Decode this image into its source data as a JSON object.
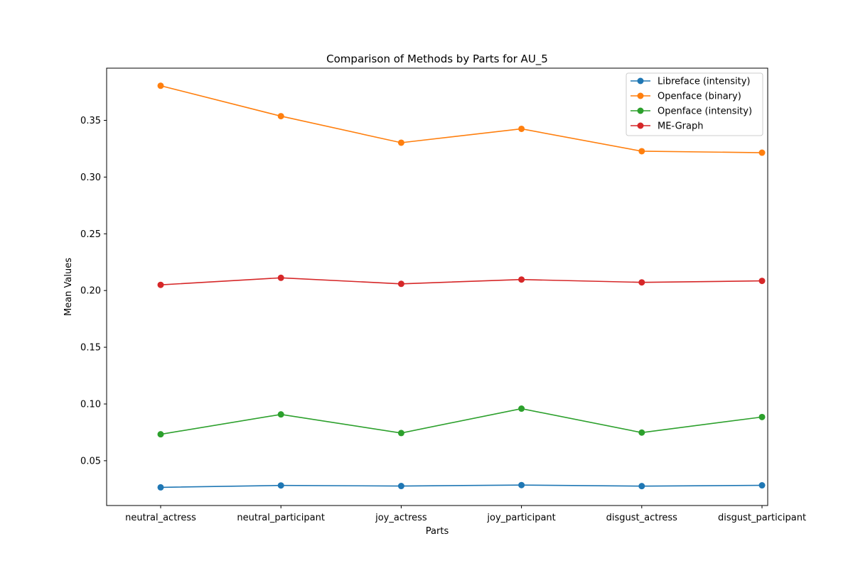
{
  "chart_data": {
    "type": "line",
    "title": "Comparison of Methods by Parts for AU_5",
    "xlabel": "Parts",
    "ylabel": "Mean Values",
    "categories": [
      "neutral_actress",
      "neutral_participant",
      "joy_actress",
      "joy_participant",
      "disgust_actress",
      "disgust_participant"
    ],
    "ylim": [
      0.0105,
      0.396
    ],
    "yticks": [
      0.05,
      0.1,
      0.15,
      0.2,
      0.25,
      0.3,
      0.35
    ],
    "ytick_labels": [
      "0.05",
      "0.10",
      "0.15",
      "0.20",
      "0.25",
      "0.30",
      "0.35"
    ],
    "grid": false,
    "legend_position": "top-right",
    "series": [
      {
        "name": "Libreface (intensity)",
        "color": "#1f77b4",
        "values": [
          0.0265,
          0.0282,
          0.0277,
          0.0285,
          0.0276,
          0.0283
        ]
      },
      {
        "name": "Openface (binary)",
        "color": "#ff7f0e",
        "values": [
          0.3805,
          0.3537,
          0.3303,
          0.3425,
          0.3228,
          0.3215
        ]
      },
      {
        "name": "Openface (intensity)",
        "color": "#2ca02c",
        "values": [
          0.0733,
          0.0908,
          0.0744,
          0.0959,
          0.0748,
          0.0885
        ]
      },
      {
        "name": "ME-Graph",
        "color": "#d62728",
        "values": [
          0.205,
          0.2112,
          0.2059,
          0.2097,
          0.2072,
          0.2085
        ]
      }
    ]
  }
}
